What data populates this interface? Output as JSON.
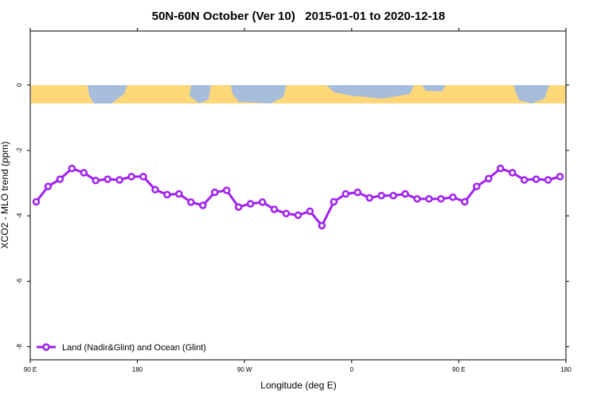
{
  "chart_data": {
    "type": "line",
    "title": "50N-60N October (Ver 10)   2015-01-01 to 2020-12-18",
    "xlabel": "Longitude (deg E)",
    "ylabel": "XCO2 - MLO trend (ppm)",
    "x": [
      95,
      105,
      115,
      125,
      135,
      145,
      155,
      165,
      175,
      185,
      195,
      205,
      215,
      225,
      235,
      245,
      255,
      265,
      275,
      285,
      295,
      305,
      315,
      325,
      335,
      345,
      355,
      365,
      375,
      385,
      395,
      405,
      415,
      425,
      435,
      445,
      455,
      465,
      475,
      485,
      495,
      505,
      515,
      525,
      535
    ],
    "series": [
      {
        "name": "Land (Nadir&Glint) and Ocean (Glint)",
        "color": "#a020f0",
        "values": [
          -3.57,
          -3.1,
          -2.88,
          -2.55,
          -2.68,
          -2.92,
          -2.88,
          -2.9,
          -2.8,
          -2.8,
          -3.2,
          -3.35,
          -3.33,
          -3.58,
          -3.68,
          -3.28,
          -3.22,
          -3.73,
          -3.63,
          -3.58,
          -3.8,
          -3.93,
          -3.98,
          -3.86,
          -4.3,
          -3.57,
          -3.33,
          -3.28,
          -3.45,
          -3.38,
          -3.38,
          -3.33,
          -3.48,
          -3.48,
          -3.48,
          -3.43,
          -3.57,
          -3.1,
          -2.86,
          -2.55,
          -2.68,
          -2.9,
          -2.88,
          -2.9,
          -2.8
        ]
      }
    ],
    "xlim": [
      90,
      540
    ],
    "xticks": [
      {
        "value": 90,
        "label": "90 E"
      },
      180,
      {
        "value": 270,
        "label": "90 W"
      },
      {
        "value": 360,
        "label": "0"
      },
      {
        "value": 450,
        "label": "90 E"
      },
      {
        "value": 540,
        "label": "180"
      }
    ],
    "ylim": [
      -8.4,
      1.65
    ],
    "yticks": [
      0,
      -2,
      -4,
      -6,
      -8
    ],
    "legend": "bottomleft"
  }
}
